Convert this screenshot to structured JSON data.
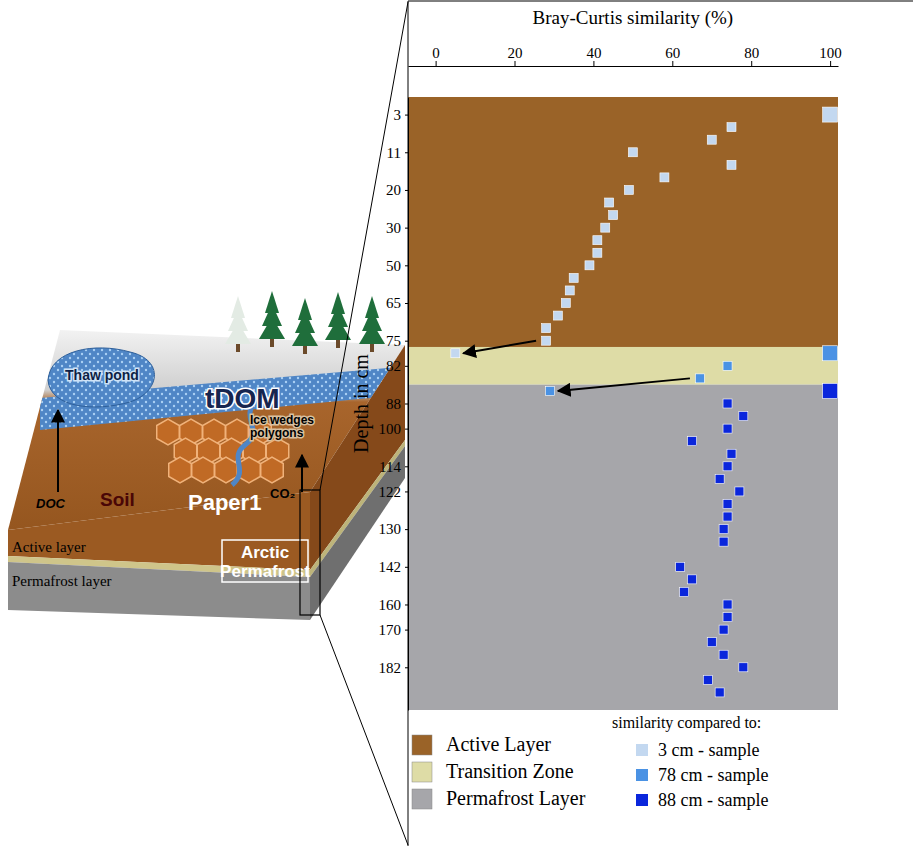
{
  "chart_data": {
    "type": "scatter",
    "title": "Bray-Curtis similarity (%)",
    "y_label": "Depth in cm",
    "xlim": [
      -7,
      102
    ],
    "xticks": [
      0,
      20,
      40,
      60,
      80,
      100
    ],
    "categories": [
      "3",
      null,
      null,
      "11",
      null,
      null,
      "20",
      null,
      null,
      "30",
      null,
      null,
      "50",
      null,
      null,
      "65",
      null,
      null,
      "75",
      null,
      "82",
      null,
      null,
      "88",
      null,
      "100",
      null,
      null,
      "114",
      null,
      "122",
      null,
      null,
      "130",
      null,
      null,
      "142",
      null,
      null,
      "160",
      null,
      "170",
      null,
      null,
      "182",
      null,
      null
    ],
    "marker": "square",
    "legend": "bottom",
    "legend_title": "similarity compared to:",
    "zones": [
      {
        "name": "Active Layer",
        "color": "#9a6328",
        "start": 0,
        "end": 18
      },
      {
        "name": "Transition Zone",
        "color": "#dedca6",
        "start": 19,
        "end": 21
      },
      {
        "name": "Permafrost Layer",
        "color": "#a6a6aa",
        "start": 22,
        "end": 46
      }
    ],
    "series": [
      {
        "name": "3 cm - sample",
        "color": "#c3d8f0",
        "values": [
          100,
          75,
          70,
          50,
          75,
          58,
          49,
          44,
          45,
          43,
          41,
          41,
          39,
          35,
          34,
          33,
          31,
          28,
          28,
          5,
          null,
          null,
          null,
          null,
          null,
          null,
          null,
          null,
          null,
          null,
          null,
          null,
          null,
          null,
          null,
          null,
          null,
          null,
          null,
          null,
          null,
          null,
          null,
          null,
          null,
          null,
          null
        ]
      },
      {
        "name": "78 cm - sample",
        "color": "#4a92e4",
        "values": [
          null,
          null,
          null,
          null,
          null,
          null,
          null,
          null,
          null,
          null,
          null,
          null,
          null,
          null,
          null,
          null,
          null,
          null,
          null,
          100,
          74,
          67,
          29,
          null,
          null,
          null,
          null,
          null,
          null,
          null,
          null,
          null,
          null,
          null,
          null,
          null,
          null,
          null,
          null,
          null,
          null,
          null,
          null,
          null,
          null,
          null,
          null
        ]
      },
      {
        "name": "88 cm - sample",
        "color": "#0a26dc",
        "values": [
          null,
          null,
          null,
          null,
          null,
          null,
          null,
          null,
          null,
          null,
          null,
          null,
          null,
          null,
          null,
          null,
          null,
          null,
          null,
          null,
          null,
          null,
          100,
          74,
          78,
          74,
          65,
          75,
          74,
          72,
          77,
          74,
          74,
          73,
          73,
          null,
          62,
          65,
          63,
          74,
          74,
          73,
          70,
          73,
          78,
          69,
          72
        ]
      }
    ]
  },
  "diagram": {
    "tdom": "tDOM",
    "thaw_pond": "Thaw pond",
    "ice_wedges": "Ice wedges polygons",
    "doc": "DOC",
    "soil": "Soil",
    "paper": "Paper1",
    "co2": "CO₂",
    "active_layer": "Active layer",
    "permafrost_box": "Arctic Permafrost",
    "permafrost_layer": "Permafrost layer"
  }
}
